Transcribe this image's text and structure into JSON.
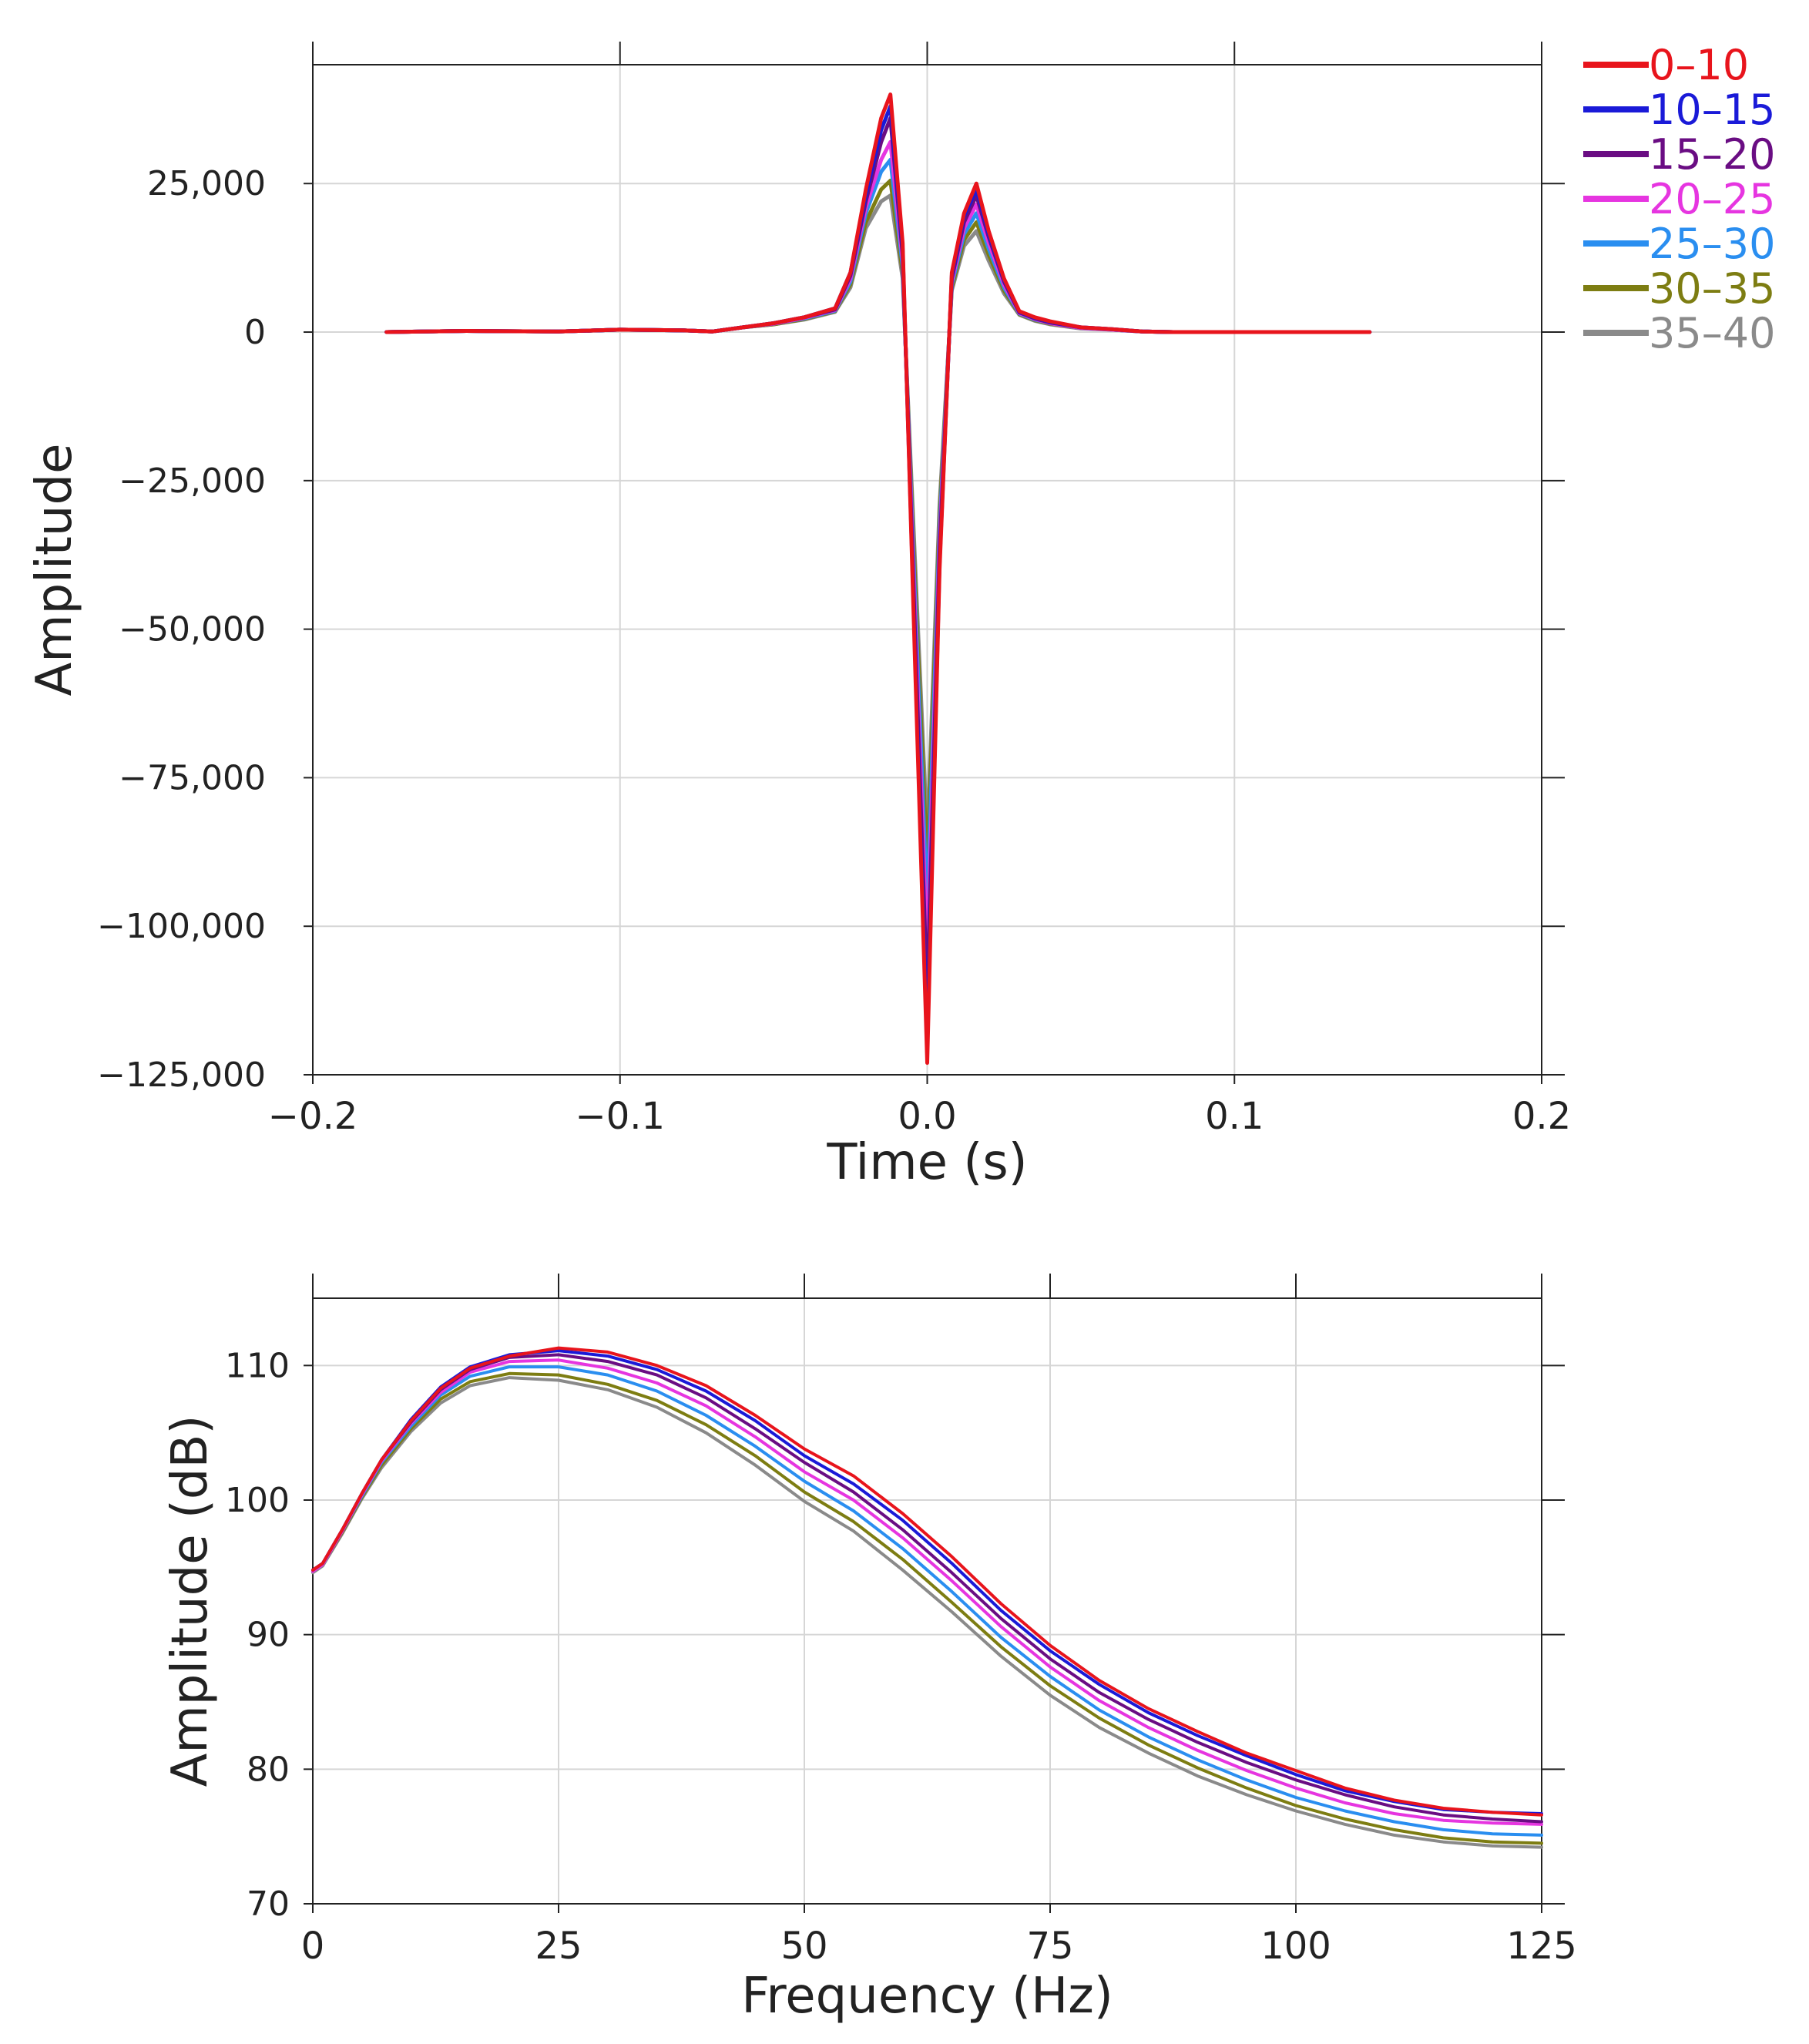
{
  "chart_data": [
    {
      "type": "line",
      "xlabel": "Time (s)",
      "ylabel": "Amplitude",
      "xlim": [
        -0.2,
        0.2
      ],
      "ylim": [
        -125000,
        45000
      ],
      "xticks": [
        -0.2,
        -0.1,
        0.0,
        0.1,
        0.2
      ],
      "xtick_labels": [
        "−0.2",
        "−0.1",
        "0.0",
        "0.1",
        "0.2"
      ],
      "yticks": [
        25000,
        0,
        -25000,
        -50000,
        -75000,
        -100000,
        -125000
      ],
      "ytick_labels": [
        "25,000",
        "0",
        "−25,000",
        "−50,000",
        "−75,000",
        "−100,000",
        "−125,000"
      ],
      "grid": true,
      "legend_position": "top-right",
      "x": [
        -0.176,
        -0.15,
        -0.12,
        -0.1,
        -0.08,
        -0.07,
        -0.06,
        -0.05,
        -0.04,
        -0.03,
        -0.025,
        -0.02,
        -0.015,
        -0.012,
        -0.008,
        -0.004,
        0.0,
        0.004,
        0.008,
        0.012,
        0.016,
        0.02,
        0.025,
        0.03,
        0.035,
        0.04,
        0.05,
        0.06,
        0.07,
        0.08,
        0.1,
        0.12,
        0.144
      ],
      "series": [
        {
          "name": "0–10",
          "color": "#e8141c",
          "values": [
            0,
            200,
            100,
            400,
            300,
            100,
            800,
            1500,
            2500,
            4000,
            10000,
            24000,
            36000,
            40000,
            15000,
            -55000,
            -123000,
            -40000,
            10000,
            20000,
            25000,
            17000,
            9000,
            3500,
            2500,
            1800,
            800,
            500,
            100,
            0,
            0,
            0,
            0
          ]
        },
        {
          "name": "10–15",
          "color": "#1a1ad8",
          "values": [
            0,
            200,
            100,
            400,
            300,
            100,
            800,
            1500,
            2500,
            4000,
            10000,
            23000,
            34000,
            38000,
            14000,
            -53000,
            -120000,
            -39000,
            9500,
            19500,
            24000,
            16500,
            8800,
            3400,
            2400,
            1700,
            800,
            500,
            100,
            0,
            0,
            0,
            0
          ]
        },
        {
          "name": "15–20",
          "color": "#6a0d83",
          "values": [
            0,
            200,
            100,
            400,
            300,
            100,
            800,
            1500,
            2500,
            3800,
            9500,
            22000,
            32000,
            36000,
            13000,
            -50000,
            -112000,
            -37000,
            9000,
            18500,
            23000,
            16000,
            8500,
            3300,
            2300,
            1600,
            800,
            500,
            100,
            0,
            0,
            0,
            0
          ]
        },
        {
          "name": "20–25",
          "color": "#e635e0",
          "values": [
            0,
            200,
            100,
            400,
            300,
            100,
            800,
            1400,
            2400,
            3700,
            9000,
            21000,
            29000,
            32000,
            12000,
            -47000,
            -105000,
            -35000,
            8500,
            17500,
            21500,
            15000,
            8000,
            3200,
            2200,
            1500,
            700,
            400,
            100,
            0,
            0,
            0,
            0
          ]
        },
        {
          "name": "25–30",
          "color": "#2a8ef0",
          "values": [
            0,
            200,
            100,
            400,
            300,
            100,
            800,
            1400,
            2300,
            3600,
            8500,
            20000,
            27000,
            29000,
            11000,
            -44000,
            -97000,
            -33000,
            8000,
            16500,
            20000,
            14000,
            7500,
            3100,
            2100,
            1500,
            700,
            400,
            100,
            0,
            0,
            0,
            0
          ]
        },
        {
          "name": "30–35",
          "color": "#7d7d12",
          "values": [
            0,
            200,
            100,
            400,
            300,
            100,
            800,
            1300,
            2200,
            3500,
            8000,
            18500,
            24000,
            25500,
            10000,
            -41000,
            -90000,
            -31000,
            7500,
            15500,
            18500,
            13000,
            7000,
            3000,
            2000,
            1400,
            700,
            400,
            100,
            0,
            0,
            0,
            0
          ]
        },
        {
          "name": "35–40",
          "color": "#8a8a8a",
          "values": [
            0,
            200,
            100,
            400,
            300,
            100,
            800,
            1300,
            2100,
            3400,
            7500,
            17500,
            22000,
            23000,
            9000,
            -38000,
            -85000,
            -29000,
            7000,
            14500,
            17000,
            12000,
            6500,
            2900,
            1900,
            1300,
            600,
            400,
            100,
            0,
            0,
            0,
            0
          ]
        }
      ]
    },
    {
      "type": "line",
      "xlabel": "Frequency (Hz)",
      "ylabel": "Amplitude (dB)",
      "xlim": [
        0,
        125
      ],
      "ylim": [
        70,
        115
      ],
      "xticks": [
        0,
        25,
        50,
        75,
        100,
        125
      ],
      "xtick_labels": [
        "0",
        "25",
        "50",
        "75",
        "100",
        "125"
      ],
      "yticks": [
        70,
        80,
        90,
        100,
        110
      ],
      "ytick_labels": [
        "70",
        "80",
        "90",
        "100",
        "110"
      ],
      "grid": true,
      "x": [
        0,
        1,
        3,
        5,
        7,
        10,
        13,
        16,
        20,
        25,
        30,
        35,
        40,
        45,
        50,
        55,
        60,
        65,
        70,
        75,
        80,
        85,
        90,
        95,
        100,
        105,
        110,
        115,
        120,
        125
      ],
      "series": [
        {
          "name": "0–10",
          "color": "#e8141c",
          "values": [
            94.8,
            95.3,
            97.8,
            100.5,
            103.0,
            105.9,
            108.3,
            109.8,
            110.7,
            111.3,
            111.0,
            110.0,
            108.5,
            106.3,
            103.8,
            101.8,
            99.0,
            95.8,
            92.3,
            89.2,
            86.6,
            84.5,
            82.8,
            81.2,
            79.9,
            78.6,
            77.7,
            77.1,
            76.8,
            76.6
          ]
        },
        {
          "name": "10–15",
          "color": "#1a1ad8",
          "values": [
            94.8,
            95.3,
            97.8,
            100.5,
            103.0,
            106.0,
            108.4,
            109.9,
            110.8,
            111.1,
            110.7,
            109.7,
            108.1,
            105.9,
            103.3,
            101.2,
            98.5,
            95.3,
            91.8,
            88.8,
            86.3,
            84.2,
            82.5,
            81.0,
            79.6,
            78.4,
            77.6,
            77.0,
            76.8,
            76.7
          ]
        },
        {
          "name": "15–20",
          "color": "#6a0d83",
          "values": [
            94.8,
            95.3,
            97.8,
            100.5,
            103.0,
            105.8,
            108.2,
            109.7,
            110.6,
            110.8,
            110.3,
            109.3,
            107.6,
            105.3,
            102.8,
            100.6,
            97.8,
            94.6,
            91.2,
            88.2,
            85.7,
            83.7,
            82.0,
            80.5,
            79.2,
            78.1,
            77.2,
            76.6,
            76.3,
            76.1
          ]
        },
        {
          "name": "20–25",
          "color": "#e635e0",
          "values": [
            94.7,
            95.2,
            97.7,
            100.4,
            102.9,
            105.7,
            108.0,
            109.5,
            110.3,
            110.4,
            109.8,
            108.7,
            107.0,
            104.7,
            102.1,
            100.0,
            97.2,
            94.0,
            90.6,
            87.6,
            85.1,
            83.1,
            81.4,
            79.9,
            78.6,
            77.5,
            76.7,
            76.2,
            76.0,
            75.9
          ]
        },
        {
          "name": "25–30",
          "color": "#2a8ef0",
          "values": [
            94.7,
            95.2,
            97.7,
            100.3,
            102.8,
            105.5,
            107.8,
            109.2,
            109.9,
            109.9,
            109.3,
            108.1,
            106.3,
            104.0,
            101.4,
            99.2,
            96.4,
            93.2,
            89.8,
            86.9,
            84.4,
            82.4,
            80.7,
            79.2,
            77.9,
            76.9,
            76.1,
            75.5,
            75.2,
            75.1
          ]
        },
        {
          "name": "30–35",
          "color": "#7d7d12",
          "values": [
            94.7,
            95.2,
            97.6,
            100.2,
            102.6,
            105.3,
            107.5,
            108.8,
            109.4,
            109.3,
            108.6,
            107.4,
            105.6,
            103.3,
            100.6,
            98.4,
            95.6,
            92.4,
            89.1,
            86.2,
            83.8,
            81.8,
            80.1,
            78.6,
            77.3,
            76.3,
            75.5,
            74.9,
            74.6,
            74.5
          ]
        },
        {
          "name": "35–40",
          "color": "#8a8a8a",
          "values": [
            94.6,
            95.1,
            97.5,
            100.1,
            102.4,
            105.1,
            107.2,
            108.5,
            109.1,
            108.9,
            108.2,
            106.9,
            105.0,
            102.6,
            99.9,
            97.7,
            94.8,
            91.7,
            88.4,
            85.5,
            83.1,
            81.2,
            79.5,
            78.1,
            76.9,
            75.9,
            75.1,
            74.6,
            74.3,
            74.2
          ]
        }
      ]
    }
  ]
}
